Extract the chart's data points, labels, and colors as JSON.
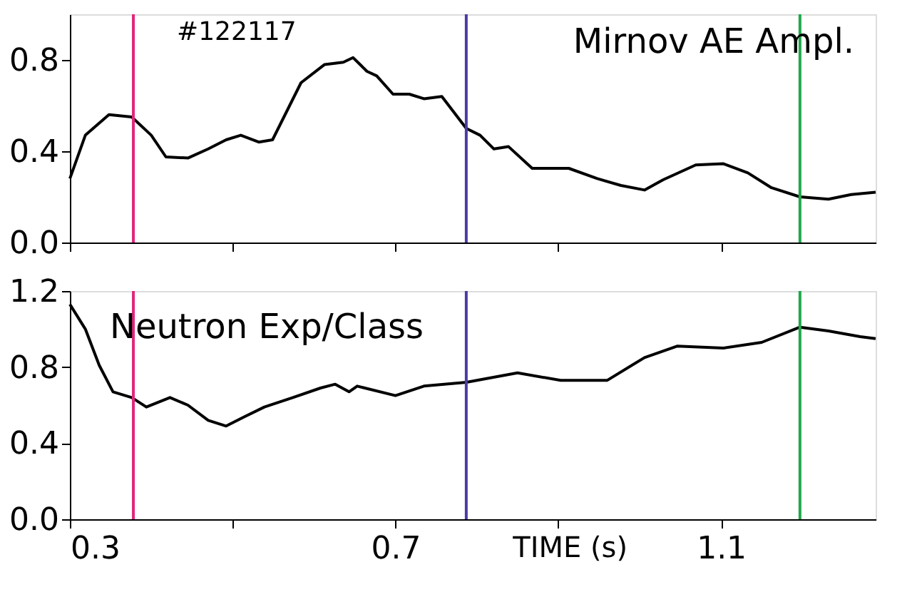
{
  "chart_data": [
    {
      "type": "line",
      "annotations": [
        "#122117",
        "Mirnov AE Ampl."
      ],
      "xlim": [
        0.3,
        1.29
      ],
      "xticks": [
        {
          "value": 0.3,
          "label": null
        },
        {
          "value": 0.5,
          "label": null
        },
        {
          "value": 0.7,
          "label": null
        },
        {
          "value": 0.9,
          "label": null
        },
        {
          "value": 1.1,
          "label": null
        }
      ],
      "ylim": [
        0,
        1.0
      ],
      "yticks": [
        {
          "value": 0,
          "label": "0.0"
        },
        0.4,
        0.8
      ],
      "tick_labels": "y",
      "grid": false,
      "series": [
        {
          "color": "#000000",
          "x": [
            0.3,
            0.319,
            0.348,
            0.376,
            0.4,
            0.418,
            0.445,
            0.47,
            0.492,
            0.51,
            0.532,
            0.549,
            0.584,
            0.613,
            0.636,
            0.648,
            0.665,
            0.677,
            0.697,
            0.717,
            0.735,
            0.757,
            0.787,
            0.804,
            0.821,
            0.839,
            0.868,
            0.913,
            0.948,
            0.977,
            1.006,
            1.029,
            1.069,
            1.103,
            1.133,
            1.162,
            1.197,
            1.232,
            1.26,
            1.29
          ],
          "values": [
            0.28,
            0.47,
            0.56,
            0.55,
            0.47,
            0.375,
            0.37,
            0.41,
            0.45,
            0.47,
            0.44,
            0.45,
            0.7,
            0.78,
            0.79,
            0.81,
            0.75,
            0.73,
            0.65,
            0.65,
            0.63,
            0.64,
            0.5,
            0.47,
            0.41,
            0.42,
            0.325,
            0.325,
            0.28,
            0.25,
            0.23,
            0.275,
            0.34,
            0.345,
            0.305,
            0.24,
            0.2,
            0.19,
            0.21,
            0.22
          ]
        }
      ],
      "ref_lines": [
        {
          "axis": "x",
          "value": 0.378,
          "color": "#e0287a"
        },
        {
          "axis": "x",
          "value": 0.787,
          "color": "#4a3aa8"
        },
        {
          "axis": "x",
          "value": 1.197,
          "color": "#1fa84a"
        }
      ]
    },
    {
      "type": "line",
      "annotations": [
        "Neutron Exp/Class"
      ],
      "xlabel": "TIME (s)",
      "xlim": [
        0.3,
        1.29
      ],
      "xticks": [
        0.3,
        {
          "value": 0.5,
          "label": null
        },
        0.7,
        {
          "value": 0.9,
          "label": null
        },
        1.1
      ],
      "ylim": [
        0,
        1.2
      ],
      "yticks": [
        {
          "value": 0,
          "label": "0.0"
        },
        0.4,
        0.8,
        1.2
      ],
      "grid": false,
      "series": [
        {
          "color": "#000000",
          "x": [
            0.3,
            0.319,
            0.336,
            0.353,
            0.376,
            0.394,
            0.423,
            0.445,
            0.47,
            0.492,
            0.515,
            0.539,
            0.574,
            0.608,
            0.626,
            0.643,
            0.653,
            0.7,
            0.735,
            0.787,
            0.85,
            0.903,
            0.96,
            1.006,
            1.046,
            1.103,
            1.15,
            1.197,
            1.232,
            1.271,
            1.29
          ],
          "values": [
            1.13,
            1.0,
            0.81,
            0.67,
            0.64,
            0.59,
            0.64,
            0.6,
            0.52,
            0.49,
            0.54,
            0.59,
            0.64,
            0.69,
            0.71,
            0.67,
            0.7,
            0.65,
            0.7,
            0.72,
            0.77,
            0.73,
            0.73,
            0.85,
            0.91,
            0.9,
            0.93,
            1.01,
            0.99,
            0.96,
            0.95
          ]
        }
      ],
      "ref_lines": [
        {
          "axis": "x",
          "value": 0.378,
          "color": "#e0287a"
        },
        {
          "axis": "x",
          "value": 0.787,
          "color": "#4a3aa8"
        },
        {
          "axis": "x",
          "value": 1.197,
          "color": "#1fa84a"
        }
      ]
    }
  ]
}
